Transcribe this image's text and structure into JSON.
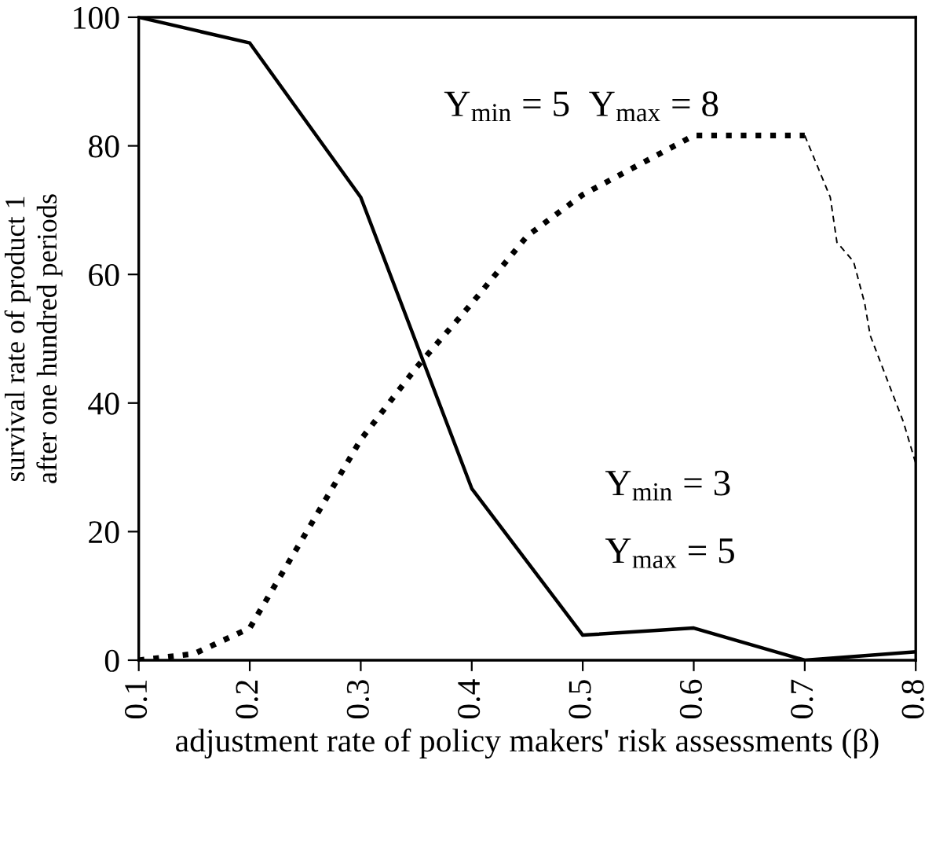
{
  "chart_data": {
    "type": "line",
    "xlabel": "adjustment rate of policy makers' risk assessments (β)",
    "ylabel": "survival rate of product 1\nafter one hundred periods",
    "xlim": [
      0.1,
      0.8
    ],
    "xticks": [
      0.1,
      0.2,
      0.3,
      0.4,
      0.5,
      0.6,
      0.7,
      0.8
    ],
    "ylim": [
      0,
      100
    ],
    "yticks": [
      0,
      20,
      40,
      60,
      80,
      100
    ],
    "grid": false,
    "marker": "none",
    "series": [
      {
        "color": "#000000",
        "line_style": "solid",
        "x": [
          0.1,
          0.2,
          0.3,
          0.4,
          0.5,
          0.6,
          0.7,
          0.8
        ],
        "values": [
          100,
          96,
          72,
          26.7,
          3.9,
          5,
          0,
          1.3
        ]
      },
      {
        "color": "#000000",
        "line_style": "dotted",
        "x": [
          0.1,
          0.15,
          0.2,
          0.25,
          0.3,
          0.35,
          0.4,
          0.45,
          0.5,
          0.55,
          0.6,
          0.7
        ],
        "values": [
          0,
          1,
          5,
          19.6,
          34.3,
          45.5,
          55.5,
          66,
          72.4,
          77,
          81.6,
          81.6
        ]
      },
      {
        "color": "#000000",
        "line_style": "dashed",
        "x": [
          0.7,
          0.723,
          0.729,
          0.744,
          0.754,
          0.759,
          0.789,
          0.8
        ],
        "values": [
          81.6,
          72,
          65,
          62,
          55.5,
          50.5,
          37,
          30.6
        ]
      }
    ],
    "annotations": [
      "Y$_{min}$ = 5  Y$_{max}$ = 8",
      "Y$_{min}$ = 3",
      "Y$_{max}$ = 5"
    ]
  }
}
